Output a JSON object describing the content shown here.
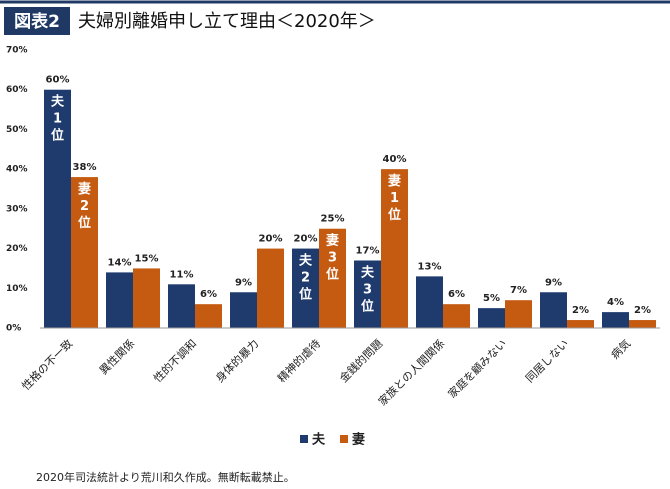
{
  "header": {
    "tag": "図表2",
    "title": "夫婦別離婚申し立て理由＜2020年＞"
  },
  "chart_data": {
    "type": "bar",
    "categories": [
      "性格の不一致",
      "異性関係",
      "性的不調和",
      "身体的暴力",
      "精神的虐待",
      "金銭的問題",
      "家族との人間関係",
      "家庭を顧みない",
      "同居しない",
      "病気"
    ],
    "series": [
      {
        "name": "夫",
        "color": "#1f3b6e",
        "values": [
          60,
          14,
          11,
          9,
          20,
          17,
          13,
          5,
          9,
          4
        ],
        "value_labels": [
          "60%",
          "14%",
          "11%",
          "9%",
          "20%",
          "17%",
          "13%",
          "5%",
          "9%",
          "4%"
        ],
        "rank_labels": [
          "夫1位",
          null,
          null,
          null,
          "夫2位",
          "夫3位",
          null,
          null,
          null,
          null
        ]
      },
      {
        "name": "妻",
        "color": "#c55a11",
        "values": [
          38,
          15,
          6,
          20,
          25,
          40,
          6,
          7,
          2,
          2
        ],
        "value_labels": [
          "38%",
          "15%",
          "6%",
          "20%",
          "25%",
          "40%",
          "6%",
          "7%",
          "2%",
          "2%"
        ],
        "rank_labels": [
          "妻2位",
          null,
          null,
          null,
          "妻3位",
          "妻1位",
          null,
          null,
          null,
          null
        ]
      }
    ],
    "ylim": [
      0,
      70
    ],
    "yticks": [
      {
        "value": 0,
        "label": "0%"
      },
      {
        "value": 10,
        "label": "10%"
      },
      {
        "value": 20,
        "label": "20%"
      },
      {
        "value": 30,
        "label": "30%"
      },
      {
        "value": 40,
        "label": "40%"
      },
      {
        "value": 50,
        "label": "50%"
      },
      {
        "value": 60,
        "label": "60%"
      },
      {
        "value": 70,
        "label": "70%"
      }
    ],
    "grid": false,
    "legend": "bottom"
  },
  "footer": "2020年司法統計より荒川和久作成。無断転載禁止。"
}
